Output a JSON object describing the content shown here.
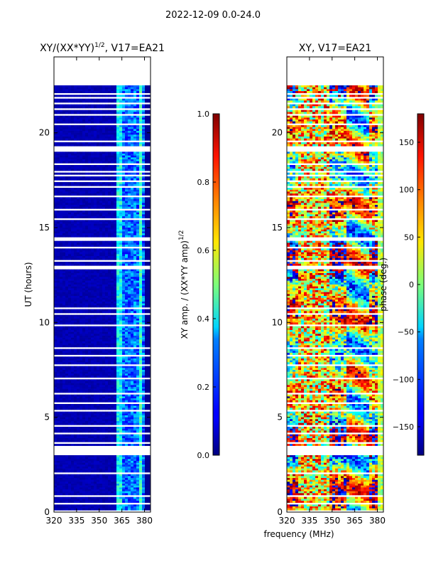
{
  "suptitle": "2022-12-09 0.0-24.0",
  "xlabel_common": "frequency (MHz)",
  "chart_data": [
    {
      "type": "heatmap",
      "title": "XY/(XX*YY)^1/2, V17=EA21",
      "title_main": "XY/(XX*YY)",
      "title_sup": "1/2",
      "title_tail": ", V17=EA21",
      "xlabel": "frequency (MHz)",
      "ylabel": "UT (hours)",
      "xlim": [
        320,
        384
      ],
      "ylim": [
        0,
        24
      ],
      "xticks": [
        320,
        335,
        350,
        365,
        380
      ],
      "yticks": [
        0,
        5,
        10,
        15,
        20
      ],
      "colormap": "jet",
      "colorbar": {
        "label_main": "XY amp. / (XX*YY amp)",
        "label_sup": "1/2",
        "min": 0.0,
        "max": 1.0,
        "ticks": [
          "0.0",
          "0.2",
          "0.4",
          "0.6",
          "0.8",
          "1.0"
        ],
        "tick_values": [
          0.0,
          0.2,
          0.4,
          0.6,
          0.8,
          1.0
        ]
      },
      "data_ut_range": [
        0,
        22.5
      ],
      "description_values": "mostly low amplitude (~0.05); elevated 0.3-0.5 between 362-378 MHz"
    },
    {
      "type": "heatmap",
      "title": "XY, V17=EA21",
      "xlabel": "frequency (MHz)",
      "ylabel": "",
      "xlim": [
        320,
        384
      ],
      "ylim": [
        0,
        24
      ],
      "xticks": [
        320,
        335,
        350,
        365,
        380
      ],
      "yticks": [
        0,
        5,
        10,
        15,
        20
      ],
      "colormap": "jet",
      "colorbar": {
        "label_main": "phase (deg.)",
        "min": -180,
        "max": 180,
        "ticks": [
          "−150",
          "−100",
          "−50",
          "0",
          "50",
          "100",
          "150"
        ],
        "tick_values": [
          -150,
          -100,
          -50,
          0,
          50,
          100,
          150
        ]
      },
      "data_ut_range": [
        0,
        22.5
      ]
    }
  ],
  "colors": {
    "jet_low": "#00007f",
    "jet_high": "#7f0000",
    "frame": "#000000",
    "background": "#ffffff"
  }
}
